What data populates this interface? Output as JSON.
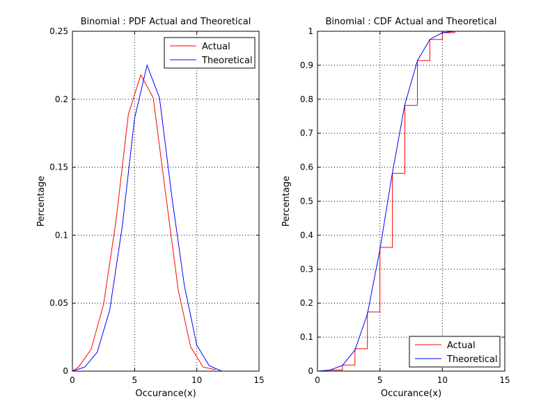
{
  "chart_data": [
    {
      "type": "line",
      "title": "Binomial : PDF Actual and Theoretical",
      "xlabel": "Occurance(x)",
      "ylabel": "Percentage",
      "xlim": [
        0,
        15
      ],
      "ylim": [
        0,
        0.25
      ],
      "xticks": [
        0,
        5,
        10,
        15
      ],
      "yticks": [
        0,
        0.05,
        0.1,
        0.15,
        0.2,
        0.25
      ],
      "xtick_labels": [
        "0",
        "5",
        "10",
        "15"
      ],
      "ytick_labels": [
        "0",
        "0.05",
        "0.1",
        "0.15",
        "0.2",
        "0.25"
      ],
      "grid": true,
      "legend_position": "top-right",
      "series": [
        {
          "name": "Actual",
          "color": "#ff0000",
          "x": [
            0,
            0.5,
            1.5,
            2.5,
            3.5,
            4.5,
            5.5,
            6.5,
            7.5,
            8.5,
            9.5,
            10.5,
            11.5
          ],
          "y": [
            0,
            0.003,
            0.016,
            0.049,
            0.11,
            0.189,
            0.218,
            0.201,
            0.13,
            0.06,
            0.018,
            0.003,
            0.001
          ]
        },
        {
          "name": "Theoretical",
          "color": "#0000ff",
          "x": [
            0,
            1,
            2,
            3,
            4,
            5,
            6,
            7,
            8,
            9,
            10,
            11,
            12
          ],
          "y": [
            0,
            0.003,
            0.014,
            0.045,
            0.106,
            0.186,
            0.225,
            0.201,
            0.128,
            0.063,
            0.019,
            0.004,
            0
          ]
        }
      ]
    },
    {
      "type": "line",
      "title": "Binomial : CDF Actual and Theoretical",
      "xlabel": "Occurance(x)",
      "ylabel": "Percentage",
      "xlim": [
        0,
        15
      ],
      "ylim": [
        0,
        1
      ],
      "xticks": [
        0,
        5,
        10,
        15
      ],
      "yticks": [
        0,
        0.1,
        0.2,
        0.3,
        0.4,
        0.5,
        0.6,
        0.7,
        0.8,
        0.9,
        1
      ],
      "xtick_labels": [
        "0",
        "5",
        "10",
        "15"
      ],
      "ytick_labels": [
        "0",
        "0.1",
        "0.2",
        "0.3",
        "0.4",
        "0.5",
        "0.6",
        "0.7",
        "0.8",
        "0.9",
        "1"
      ],
      "grid": true,
      "legend_position": "bottom-right",
      "series": [
        {
          "name": "Actual",
          "color": "#ff0000",
          "step": true,
          "x": [
            0,
            1,
            2,
            3,
            4,
            5,
            6,
            7,
            8,
            9,
            10,
            11
          ],
          "y": [
            0,
            0.003,
            0.018,
            0.066,
            0.174,
            0.364,
            0.582,
            0.782,
            0.914,
            0.976,
            0.996,
            1
          ]
        },
        {
          "name": "Theoretical",
          "color": "#0000ff",
          "x": [
            0,
            1,
            2,
            3,
            4,
            5,
            6,
            7,
            8,
            9,
            10,
            11
          ],
          "y": [
            0,
            0.003,
            0.017,
            0.062,
            0.168,
            0.358,
            0.584,
            0.785,
            0.913,
            0.976,
            0.996,
            1
          ]
        }
      ]
    }
  ]
}
